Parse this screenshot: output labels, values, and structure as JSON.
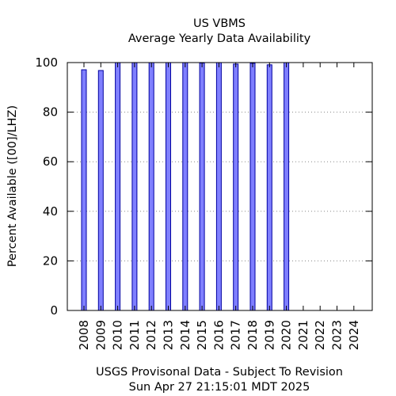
{
  "chart_data": {
    "type": "bar",
    "title": "US VBMS",
    "subtitle": "Average Yearly Data Availability",
    "xlabel": "",
    "ylabel": "Percent Available ([00]/LHZ)",
    "categories": [
      "2008",
      "2009",
      "2010",
      "2011",
      "2012",
      "2013",
      "2014",
      "2015",
      "2016",
      "2017",
      "2018",
      "2019",
      "2020",
      "2021",
      "2022",
      "2023",
      "2024"
    ],
    "values": [
      97.1,
      96.8,
      100,
      100,
      100,
      100,
      100,
      99.8,
      100,
      99.4,
      99.7,
      99.1,
      100,
      null,
      null,
      null,
      null
    ],
    "ylim": [
      0,
      100
    ],
    "yticks": [
      0,
      20,
      40,
      60,
      80,
      100
    ],
    "grid": "horizontal dotted",
    "bar_color": "#7f7fff",
    "bar_edge_color": "#0000a0"
  },
  "footer": {
    "line1": "USGS Provisonal Data - Subject To Revision",
    "line2": "Sun Apr 27 21:15:01 MDT 2025"
  }
}
